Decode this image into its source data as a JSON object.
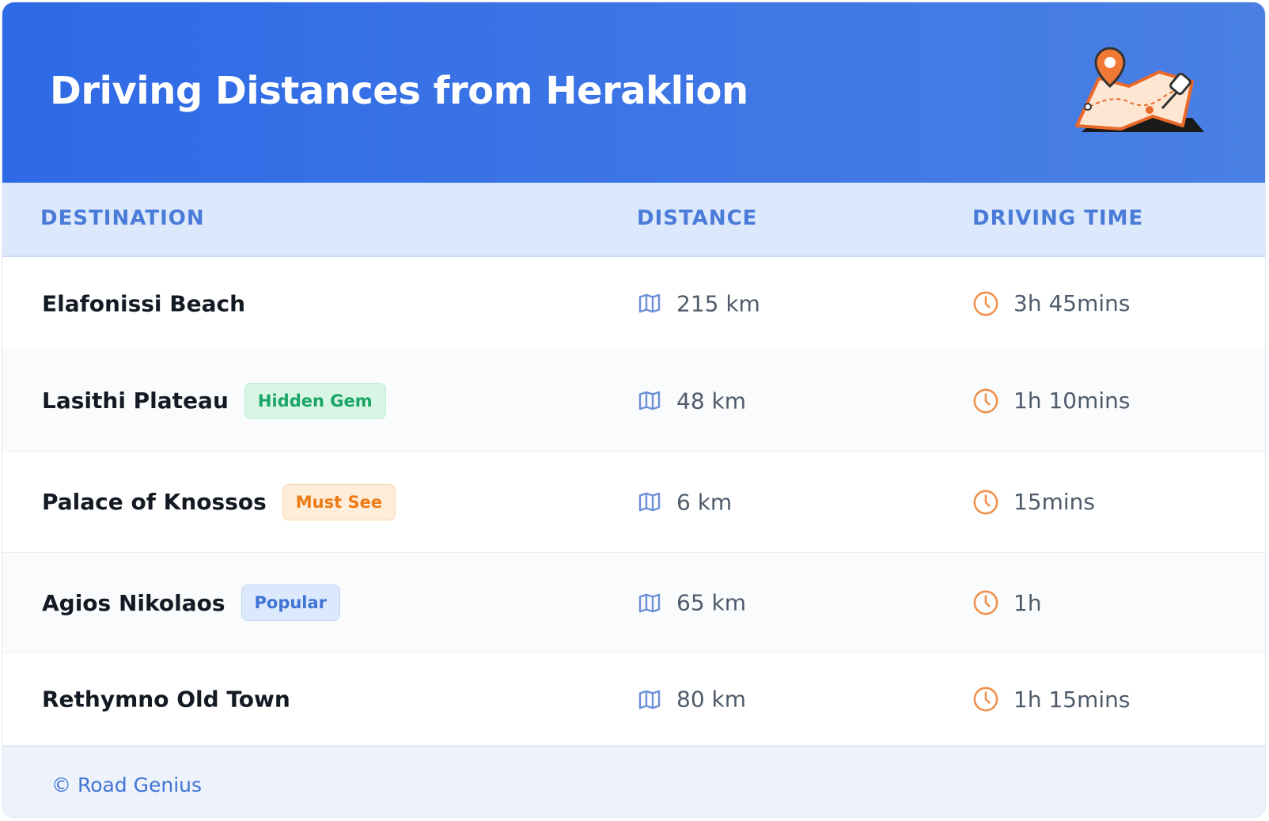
{
  "header": {
    "title": "Driving Distances from Heraklion"
  },
  "table": {
    "columns": [
      "DESTINATION",
      "DISTANCE",
      "DRIVING TIME"
    ],
    "rows": [
      {
        "destination": "Elafonissi Beach",
        "distance": "215 km",
        "time": "3h 45mins"
      },
      {
        "destination": "Lasithi Plateau",
        "badge": "Hidden Gem",
        "distance": "48 km",
        "time": "1h 10mins"
      },
      {
        "destination": "Palace of Knossos",
        "badge": "Must See",
        "distance": "6 km",
        "time": "15mins"
      },
      {
        "destination": "Agios Nikolaos",
        "badge": "Popular",
        "distance": "65 km",
        "time": "1h"
      },
      {
        "destination": "Rethymno Old Town",
        "distance": "80 km",
        "time": "1h 15mins"
      }
    ]
  },
  "footer": {
    "text": "© Road Genius"
  }
}
